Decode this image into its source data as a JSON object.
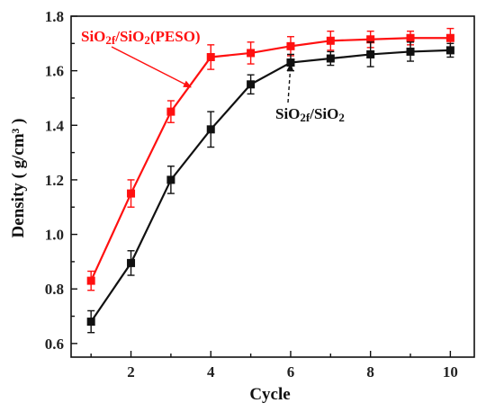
{
  "chart_data": {
    "type": "line",
    "xlabel": "Cycle",
    "ylabel": "Density ( g/cm³ )",
    "xlim": [
      0.5,
      10.6
    ],
    "ylim": [
      0.55,
      1.8
    ],
    "xticks": [
      2,
      4,
      6,
      8,
      10
    ],
    "yticks": [
      0.6,
      0.8,
      1.0,
      1.2,
      1.4,
      1.6,
      1.8
    ],
    "ytick_labels": [
      "0.6",
      "0.8",
      "1.0",
      "1.2",
      "1.4",
      "1.6",
      "1.8"
    ],
    "grid": false,
    "series": [
      {
        "name_parts": [
          "SiO",
          "2f",
          "/SiO",
          "2",
          "(PESO)"
        ],
        "color": "#ff1010",
        "marker": "square",
        "x": [
          1,
          2,
          3,
          4,
          5,
          6,
          7,
          8,
          9,
          10
        ],
        "values": [
          0.83,
          1.15,
          1.45,
          1.65,
          1.665,
          1.69,
          1.71,
          1.715,
          1.72,
          1.72
        ],
        "errors": [
          0.035,
          0.05,
          0.04,
          0.045,
          0.04,
          0.035,
          0.035,
          0.03,
          0.025,
          0.035
        ]
      },
      {
        "name_parts": [
          "SiO",
          "2f",
          "/SiO",
          "2"
        ],
        "color": "#111111",
        "marker": "square",
        "x": [
          1,
          2,
          3,
          4,
          5,
          6,
          7,
          8,
          9,
          10
        ],
        "values": [
          0.68,
          0.895,
          1.2,
          1.385,
          1.55,
          1.63,
          1.645,
          1.66,
          1.67,
          1.675
        ],
        "errors": [
          0.04,
          0.045,
          0.05,
          0.065,
          0.035,
          0.03,
          0.025,
          0.045,
          0.035,
          0.025
        ]
      }
    ],
    "annotations": [
      {
        "series": 0,
        "point_x": 3.5,
        "point_y": 1.54
      },
      {
        "series": 1,
        "point_x": 6.0,
        "point_y": 1.625
      }
    ]
  }
}
